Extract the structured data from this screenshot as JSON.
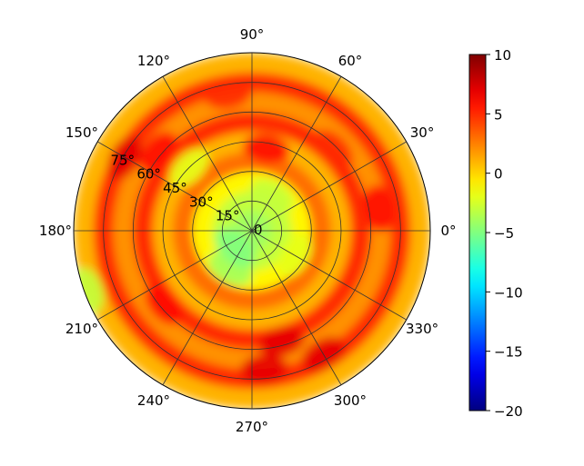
{
  "chart_data": {
    "type": "heatmap",
    "projection": "polar",
    "title": "",
    "angular_ticks": [
      "0°",
      "30°",
      "60°",
      "90°",
      "120°",
      "150°",
      "180°",
      "210°",
      "240°",
      "270°",
      "300°",
      "330°"
    ],
    "angular_tick_values_deg": [
      0,
      30,
      60,
      90,
      120,
      150,
      180,
      210,
      240,
      270,
      300,
      330
    ],
    "radial_ticks": [
      "0",
      "15°",
      "30°",
      "45°",
      "60°",
      "75°"
    ],
    "radial_tick_values": [
      0,
      15,
      30,
      45,
      60,
      75
    ],
    "rlim": [
      0,
      90
    ],
    "grid": true,
    "colormap": "jet",
    "colorbar": {
      "vmin": -20,
      "vmax": 10,
      "ticks": [
        "10",
        "5",
        "0",
        "−5",
        "−10",
        "−15",
        "−20"
      ],
      "tick_values": [
        10,
        5,
        0,
        -5,
        -10,
        -15,
        -20
      ],
      "placement": "right"
    },
    "radial_bands": {
      "radii": [
        0,
        10,
        20,
        30,
        40,
        50,
        60,
        70,
        80,
        90
      ],
      "values": [
        -4,
        -3,
        -1,
        3,
        1,
        5,
        2,
        5,
        1,
        2
      ]
    },
    "hotspots": [
      {
        "theta": 150,
        "r": 74,
        "value": 7
      },
      {
        "theta": 140,
        "r": 62,
        "value": 6
      },
      {
        "theta": 285,
        "r": 58,
        "value": 7
      },
      {
        "theta": 300,
        "r": 72,
        "value": 7
      },
      {
        "theta": 275,
        "r": 70,
        "value": 7
      },
      {
        "theta": 10,
        "r": 65,
        "value": 6
      },
      {
        "theta": 80,
        "r": 42,
        "value": 6
      },
      {
        "theta": 100,
        "r": 70,
        "value": 5
      },
      {
        "theta": 220,
        "r": 58,
        "value": 6
      },
      {
        "theta": 45,
        "r": 58,
        "value": 5
      }
    ],
    "coldspots": [
      {
        "theta": 135,
        "r": 45,
        "value": -2
      },
      {
        "theta": 240,
        "r": 22,
        "value": -4
      },
      {
        "theta": 225,
        "r": 12,
        "value": -5
      },
      {
        "theta": 200,
        "r": 88,
        "value": -3
      },
      {
        "theta": 60,
        "r": 20,
        "value": -3
      },
      {
        "theta": 330,
        "r": 25,
        "value": -2
      }
    ]
  }
}
